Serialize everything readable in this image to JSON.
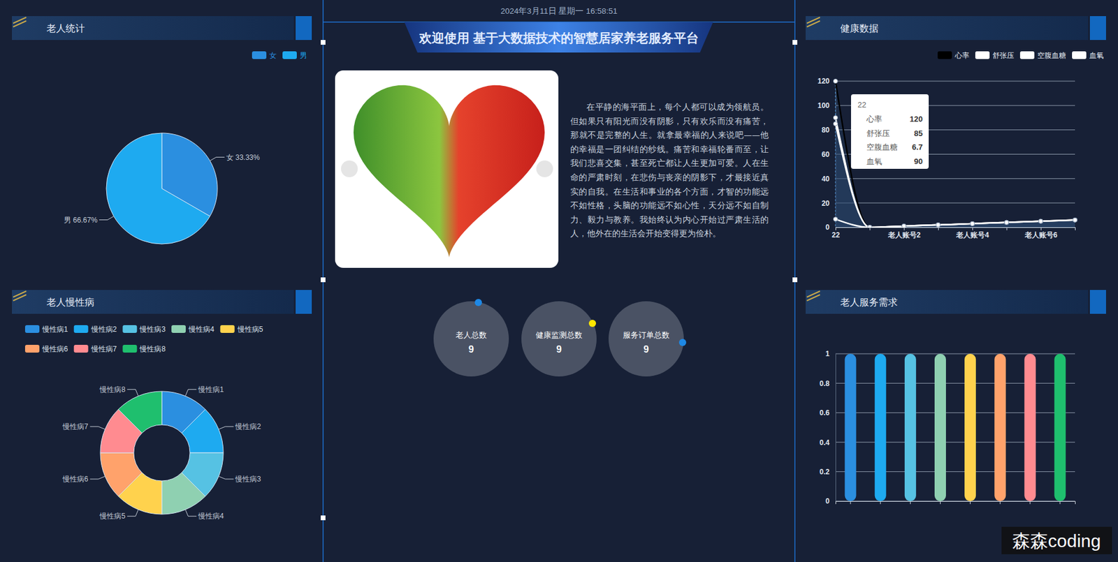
{
  "header": {
    "datetime": "2024年3月11日 星期一 16:58:51",
    "title": "欢迎使用 基于大数据技术的智慧居家养老服务平台"
  },
  "article": {
    "text": "在平静的海平面上，每个人都可以成为领航员。但如果只有阳光而没有阴影，只有欢乐而没有痛苦，那就不是完整的人生。就拿最幸福的人来说吧——他的幸福是一团纠结的纱线。痛苦和幸福轮番而至，让我们悲喜交集，甚至死亡都让人生更加可爱。人在生命的严肃时刻，在悲伤与丧亲的阴影下，才最接近真实的自我。在生活和事业的各个方面，才智的功能远不如性格，头脑的功能远不如心性，天分远不如自制力、毅力与教养。我始终认为内心开始过严肃生活的人，他外在的生活会开始变得更为俭朴。"
  },
  "stats": [
    {
      "label": "老人总数",
      "value": 9
    },
    {
      "label": "健康监测总数",
      "value": 9
    },
    {
      "label": "服务订单总数",
      "value": 9
    }
  ],
  "watermark": "森森coding",
  "chart_data": [
    {
      "type": "pie",
      "title": "老人统计",
      "categories": [
        "女",
        "男"
      ],
      "values": [
        33.33,
        66.67
      ],
      "value_labels": [
        "女 33.33%",
        "男 66.67%"
      ],
      "colors": [
        "#2b8fe0",
        "#1eaaf0"
      ],
      "legend": "top-right",
      "data_labels": true
    },
    {
      "type": "donut",
      "title": "老人慢性病",
      "categories": [
        "慢性病1",
        "慢性病2",
        "慢性病3",
        "慢性病4",
        "慢性病5",
        "慢性病6",
        "慢性病7",
        "慢性病8"
      ],
      "values": [
        1,
        1,
        1,
        1,
        1,
        1,
        1,
        1
      ],
      "colors": [
        "#2b8fe0",
        "#1eaaf0",
        "#56c2e3",
        "#8fd0b1",
        "#ffd24d",
        "#ffa26b",
        "#ff8b90",
        "#1fbf6e"
      ],
      "legend": "top-left"
    },
    {
      "type": "line",
      "title": "健康数据",
      "categories": [
        "22",
        null,
        "老人账号2",
        null,
        "老人账号4",
        null,
        "老人账号6",
        null
      ],
      "series": [
        {
          "name": "心率",
          "color": "#000000",
          "values": [
            120,
            0,
            1,
            2,
            3,
            4,
            5,
            6
          ]
        },
        {
          "name": "舒张压",
          "color": "#ffffff",
          "values": [
            85,
            0,
            1,
            2,
            3,
            4,
            5,
            6
          ]
        },
        {
          "name": "空腹血糖",
          "color": "#ffffff",
          "values": [
            6.7,
            0,
            1,
            2,
            3,
            4,
            5,
            6
          ]
        },
        {
          "name": "血氧",
          "color": "#ffffff",
          "values": [
            90,
            0,
            1,
            2,
            3,
            4,
            5,
            6
          ]
        }
      ],
      "ylim": [
        0,
        120
      ],
      "yticks": [
        0,
        20,
        40,
        60,
        80,
        100,
        120
      ],
      "grid": true,
      "legend": "top-right",
      "marker": "circle"
    },
    {
      "type": "bar",
      "title": "老人服务需求",
      "categories": [
        null,
        null,
        null,
        null,
        null,
        null,
        null,
        null
      ],
      "values": [
        1,
        1,
        1,
        1,
        1,
        1,
        1,
        1
      ],
      "colors": [
        "#2b8fe0",
        "#1eaaf0",
        "#56c2e3",
        "#8fd0b1",
        "#ffd24d",
        "#ffa26b",
        "#ff8b90",
        "#1fbf6e"
      ],
      "ylim": [
        0,
        1
      ],
      "yticks": [
        0,
        0.2,
        0.4,
        0.6,
        0.8,
        1
      ],
      "grid": true
    }
  ]
}
